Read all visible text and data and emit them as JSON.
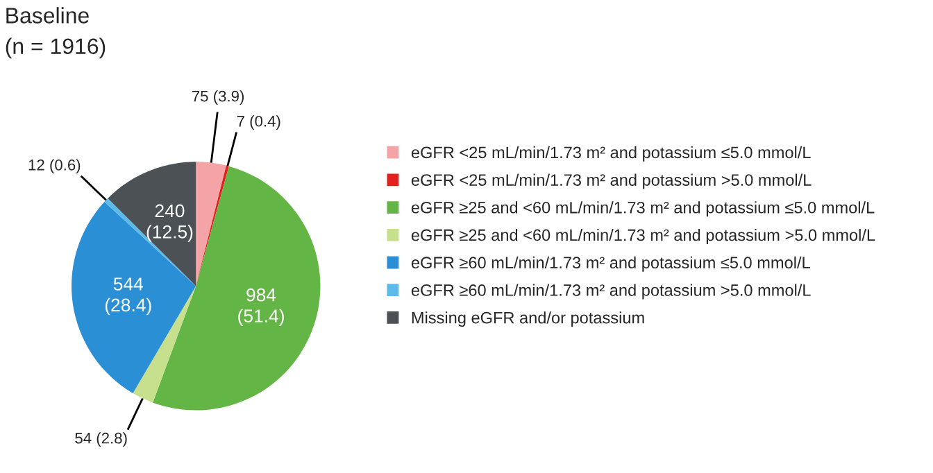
{
  "chart_data": {
    "type": "pie",
    "title": "Baseline",
    "subtitle": "(n = 1916)",
    "categories": [
      "eGFR <25 mL/min/1.73 m² and potassium ≤5.0 mmol/L",
      "eGFR <25 mL/min/1.73 m² and potassium >5.0 mmol/L",
      "eGFR ≥25 and <60 mL/min/1.73 m² and potassium ≤5.0 mmol/L",
      "eGFR ≥25 and <60 mL/min/1.73 m² and potassium >5.0 mmol/L",
      "eGFR ≥60 mL/min/1.73 m² and potassium ≤5.0 mmol/L",
      "eGFR ≥60 mL/min/1.73 m² and potassium >5.0 mmol/L",
      "Missing eGFR and/or potassium"
    ],
    "values": [
      75,
      7,
      984,
      54,
      544,
      12,
      240
    ],
    "value_labels": [
      "75 (3.9)",
      "7 (0.4)",
      "984\n(51.4)",
      "54 (2.8)",
      "544\n(28.4)",
      "12 (0.6)",
      "240\n(12.5)"
    ],
    "colors": [
      "#f4a3a6",
      "#e0231f",
      "#63b545",
      "#c6e08e",
      "#2b8fd6",
      "#5cbbe9",
      "#4c5155"
    ],
    "legend": "right"
  }
}
